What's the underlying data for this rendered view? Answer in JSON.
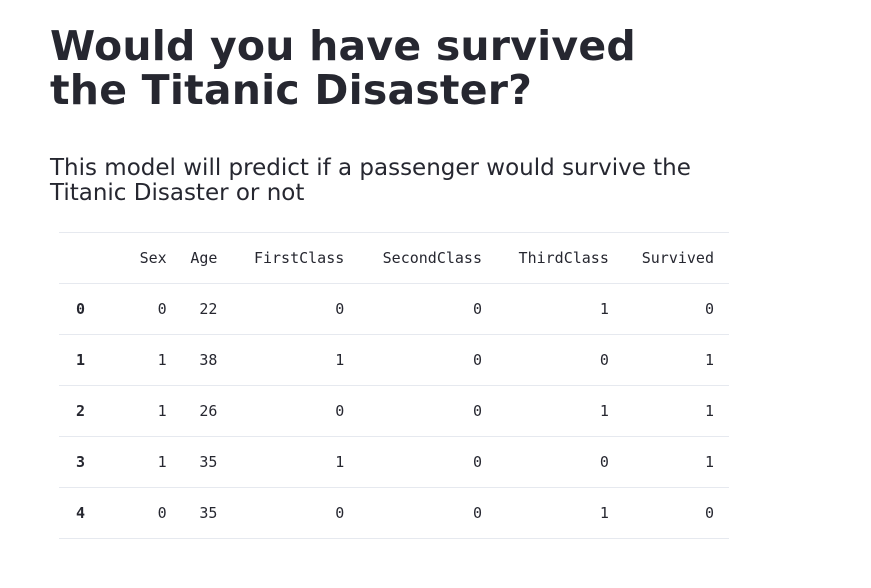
{
  "title": "Would you have survived the Titanic Disaster?",
  "subtitle": "This model will predict if a passenger would survive the Titanic Disaster or not",
  "table": {
    "columns": [
      "Sex",
      "Age",
      "FirstClass",
      "SecondClass",
      "ThirdClass",
      "Survived"
    ],
    "rows": [
      {
        "index": "0",
        "values": [
          "0",
          "22",
          "0",
          "0",
          "1",
          "0"
        ]
      },
      {
        "index": "1",
        "values": [
          "1",
          "38",
          "1",
          "0",
          "0",
          "1"
        ]
      },
      {
        "index": "2",
        "values": [
          "1",
          "26",
          "0",
          "0",
          "1",
          "1"
        ]
      },
      {
        "index": "3",
        "values": [
          "1",
          "35",
          "1",
          "0",
          "0",
          "1"
        ]
      },
      {
        "index": "4",
        "values": [
          "0",
          "35",
          "0",
          "0",
          "1",
          "0"
        ]
      }
    ]
  }
}
